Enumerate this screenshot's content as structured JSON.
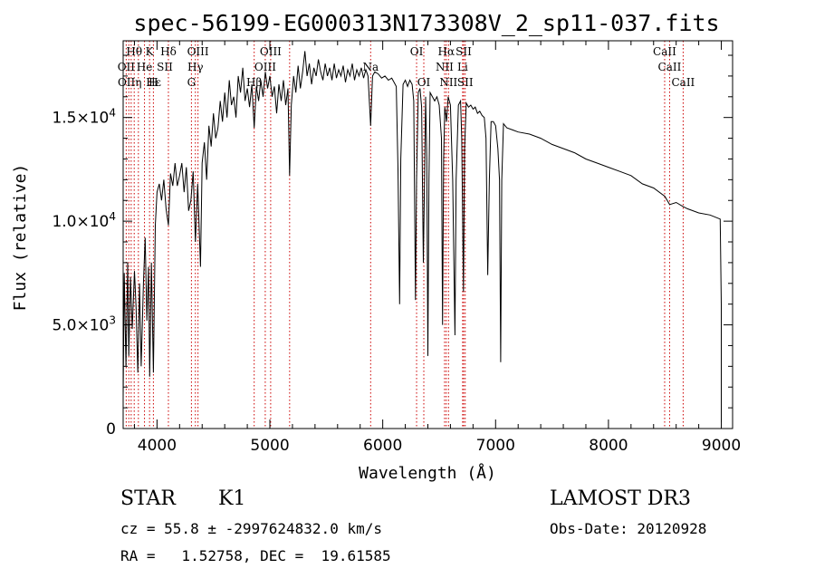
{
  "chart_data": {
    "type": "line",
    "title": "spec-56199-EG000313N173308V_2_sp11-037.fits",
    "xlabel": "Wavelength (Å)",
    "ylabel": "Flux (relative)",
    "xlim": [
      3700,
      9100
    ],
    "ylim": [
      0,
      18700
    ],
    "xticks": [
      {
        "v": 4000,
        "label": "4000"
      },
      {
        "v": 5000,
        "label": "5000"
      },
      {
        "v": 6000,
        "label": "6000"
      },
      {
        "v": 7000,
        "label": "7000"
      },
      {
        "v": 8000,
        "label": "8000"
      },
      {
        "v": 9000,
        "label": "9000"
      }
    ],
    "yticks": [
      {
        "v": 0,
        "mant": "0",
        "exp": ""
      },
      {
        "v": 5000,
        "mant": "5.0×10",
        "exp": "3"
      },
      {
        "v": 10000,
        "mant": "1.0×10",
        "exp": "4"
      },
      {
        "v": 15000,
        "mant": "1.5×10",
        "exp": "4"
      }
    ],
    "spectrum": [
      [
        3700,
        1500
      ],
      [
        3710,
        7500
      ],
      [
        3725,
        3000
      ],
      [
        3740,
        8000
      ],
      [
        3750,
        3500
      ],
      [
        3765,
        7300
      ],
      [
        3780,
        4800
      ],
      [
        3800,
        7600
      ],
      [
        3815,
        5800
      ],
      [
        3830,
        2700
      ],
      [
        3845,
        7000
      ],
      [
        3860,
        3000
      ],
      [
        3880,
        7000
      ],
      [
        3895,
        9200
      ],
      [
        3910,
        5200
      ],
      [
        3925,
        7800
      ],
      [
        3935,
        2500
      ],
      [
        3950,
        8000
      ],
      [
        3968,
        2700
      ],
      [
        3985,
        9800
      ],
      [
        4000,
        11400
      ],
      [
        4020,
        11800
      ],
      [
        4040,
        11000
      ],
      [
        4060,
        12000
      ],
      [
        4080,
        10600
      ],
      [
        4101,
        9800
      ],
      [
        4120,
        12300
      ],
      [
        4140,
        11700
      ],
      [
        4160,
        12800
      ],
      [
        4180,
        11700
      ],
      [
        4200,
        12200
      ],
      [
        4220,
        12800
      ],
      [
        4240,
        11400
      ],
      [
        4260,
        12600
      ],
      [
        4280,
        10500
      ],
      [
        4300,
        11000
      ],
      [
        4320,
        12400
      ],
      [
        4340,
        9000
      ],
      [
        4360,
        11800
      ],
      [
        4385,
        7800
      ],
      [
        4400,
        12800
      ],
      [
        4420,
        13800
      ],
      [
        4440,
        12000
      ],
      [
        4460,
        14600
      ],
      [
        4480,
        13600
      ],
      [
        4500,
        15200
      ],
      [
        4520,
        14000
      ],
      [
        4540,
        14500
      ],
      [
        4560,
        15800
      ],
      [
        4580,
        14800
      ],
      [
        4600,
        16200
      ],
      [
        4620,
        15000
      ],
      [
        4640,
        16800
      ],
      [
        4660,
        15600
      ],
      [
        4680,
        16000
      ],
      [
        4700,
        15000
      ],
      [
        4720,
        17000
      ],
      [
        4740,
        16200
      ],
      [
        4760,
        17400
      ],
      [
        4780,
        15800
      ],
      [
        4800,
        16400
      ],
      [
        4820,
        15500
      ],
      [
        4840,
        16600
      ],
      [
        4861,
        14500
      ],
      [
        4880,
        16500
      ],
      [
        4900,
        15800
      ],
      [
        4920,
        16800
      ],
      [
        4940,
        16000
      ],
      [
        4960,
        17200
      ],
      [
        4980,
        16400
      ],
      [
        5000,
        17000
      ],
      [
        5020,
        16000
      ],
      [
        5040,
        16500
      ],
      [
        5060,
        15200
      ],
      [
        5080,
        16600
      ],
      [
        5100,
        15800
      ],
      [
        5120,
        16800
      ],
      [
        5140,
        15600
      ],
      [
        5160,
        16400
      ],
      [
        5175,
        12200
      ],
      [
        5190,
        15600
      ],
      [
        5210,
        17000
      ],
      [
        5230,
        16200
      ],
      [
        5250,
        17500
      ],
      [
        5270,
        16400
      ],
      [
        5290,
        17200
      ],
      [
        5310,
        18200
      ],
      [
        5330,
        17000
      ],
      [
        5350,
        17600
      ],
      [
        5370,
        16600
      ],
      [
        5390,
        17400
      ],
      [
        5410,
        17000
      ],
      [
        5430,
        17800
      ],
      [
        5450,
        17200
      ],
      [
        5470,
        16800
      ],
      [
        5490,
        17600
      ],
      [
        5510,
        17000
      ],
      [
        5530,
        17400
      ],
      [
        5550,
        16800
      ],
      [
        5570,
        17600
      ],
      [
        5590,
        16900
      ],
      [
        5610,
        17300
      ],
      [
        5630,
        17000
      ],
      [
        5650,
        17500
      ],
      [
        5670,
        16700
      ],
      [
        5690,
        17300
      ],
      [
        5710,
        17000
      ],
      [
        5730,
        17600
      ],
      [
        5750,
        16800
      ],
      [
        5770,
        17300
      ],
      [
        5790,
        17000
      ],
      [
        5810,
        17400
      ],
      [
        5830,
        16900
      ],
      [
        5850,
        17300
      ],
      [
        5870,
        17000
      ],
      [
        5893,
        14600
      ],
      [
        5910,
        17000
      ],
      [
        5930,
        17200
      ],
      [
        5960,
        17100
      ],
      [
        5990,
        16900
      ],
      [
        6020,
        17000
      ],
      [
        6050,
        16800
      ],
      [
        6080,
        16900
      ],
      [
        6100,
        16700
      ],
      [
        6120,
        16500
      ],
      [
        6135,
        12500
      ],
      [
        6150,
        6000
      ],
      [
        6160,
        13000
      ],
      [
        6180,
        16600
      ],
      [
        6200,
        16800
      ],
      [
        6220,
        16500
      ],
      [
        6240,
        16800
      ],
      [
        6260,
        16600
      ],
      [
        6275,
        15800
      ],
      [
        6290,
        6200
      ],
      [
        6300,
        12000
      ],
      [
        6315,
        16200
      ],
      [
        6330,
        16400
      ],
      [
        6345,
        15500
      ],
      [
        6360,
        8000
      ],
      [
        6370,
        12000
      ],
      [
        6380,
        16000
      ],
      [
        6390,
        13000
      ],
      [
        6400,
        3500
      ],
      [
        6410,
        12000
      ],
      [
        6420,
        16200
      ],
      [
        6440,
        16000
      ],
      [
        6460,
        15800
      ],
      [
        6480,
        16000
      ],
      [
        6500,
        15600
      ],
      [
        6520,
        14000
      ],
      [
        6530,
        5000
      ],
      [
        6540,
        13000
      ],
      [
        6550,
        15500
      ],
      [
        6565,
        14800
      ],
      [
        6580,
        16000
      ],
      [
        6600,
        15600
      ],
      [
        6620,
        12000
      ],
      [
        6640,
        4500
      ],
      [
        6650,
        12000
      ],
      [
        6670,
        15600
      ],
      [
        6690,
        15800
      ],
      [
        6700,
        14000
      ],
      [
        6715,
        6600
      ],
      [
        6725,
        13500
      ],
      [
        6740,
        15700
      ],
      [
        6760,
        15500
      ],
      [
        6780,
        15600
      ],
      [
        6800,
        15400
      ],
      [
        6820,
        15500
      ],
      [
        6840,
        15200
      ],
      [
        6860,
        15300
      ],
      [
        6880,
        15100
      ],
      [
        6900,
        15000
      ],
      [
        6915,
        14000
      ],
      [
        6930,
        7400
      ],
      [
        6945,
        12000
      ],
      [
        6960,
        14800
      ],
      [
        6980,
        14800
      ],
      [
        7000,
        14600
      ],
      [
        7020,
        13500
      ],
      [
        7035,
        12000
      ],
      [
        7045,
        3200
      ],
      [
        7055,
        12000
      ],
      [
        7070,
        14700
      ],
      [
        7100,
        14500
      ],
      [
        7150,
        14400
      ],
      [
        7200,
        14300
      ],
      [
        7300,
        14200
      ],
      [
        7400,
        14000
      ],
      [
        7500,
        13700
      ],
      [
        7600,
        13500
      ],
      [
        7700,
        13300
      ],
      [
        7800,
        13000
      ],
      [
        7900,
        12800
      ],
      [
        8000,
        12600
      ],
      [
        8100,
        12400
      ],
      [
        8200,
        12200
      ],
      [
        8300,
        11800
      ],
      [
        8400,
        11600
      ],
      [
        8500,
        11200
      ],
      [
        8542,
        10800
      ],
      [
        8600,
        10900
      ],
      [
        8662,
        10700
      ],
      [
        8700,
        10600
      ],
      [
        8800,
        10400
      ],
      [
        8900,
        10300
      ],
      [
        8990,
        10100
      ],
      [
        9000,
        6000
      ],
      [
        9000,
        300
      ]
    ],
    "spectral_lines": [
      {
        "name": "Hθ",
        "wl": 3798,
        "row": 0
      },
      {
        "name": "K",
        "wl": 3934,
        "row": 0
      },
      {
        "name": "Hδ",
        "wl": 4101,
        "row": 0
      },
      {
        "name": "OIII",
        "wl": 4363,
        "row": 0
      },
      {
        "name": "OIII",
        "wl": 5007,
        "row": 0
      },
      {
        "name": "OI",
        "wl": 6300,
        "row": 0
      },
      {
        "name": "Hα",
        "wl": 6563,
        "row": 0
      },
      {
        "name": "SII",
        "wl": 6717,
        "row": 0
      },
      {
        "name": "CaII",
        "wl": 8498,
        "row": 0
      },
      {
        "name": "OII",
        "wl": 3727,
        "row": 1
      },
      {
        "name": "He",
        "wl": 3889,
        "row": 1
      },
      {
        "name": "SII",
        "wl": 4069,
        "row": 1
      },
      {
        "name": "Hγ",
        "wl": 4340,
        "row": 1
      },
      {
        "name": "OIII",
        "wl": 4959,
        "row": 1
      },
      {
        "name": "Na",
        "wl": 5893,
        "row": 1
      },
      {
        "name": "NII",
        "wl": 6548,
        "row": 1
      },
      {
        "name": "Li",
        "wl": 6708,
        "row": 1
      },
      {
        "name": "CaII",
        "wl": 8542,
        "row": 1
      },
      {
        "name": "OII",
        "wl": 3729,
        "row": 2
      },
      {
        "name": "Hε",
        "wl": 3970,
        "row": 2
      },
      {
        "name": "η",
        "wl": 3835,
        "row": 2
      },
      {
        "name": "H",
        "wl": 3968,
        "row": 2
      },
      {
        "name": "G",
        "wl": 4305,
        "row": 2
      },
      {
        "name": "Hβ",
        "wl": 4861,
        "row": 2
      },
      {
        "name": "OI",
        "wl": 6364,
        "row": 2
      },
      {
        "name": "NII",
        "wl": 6583,
        "row": 2
      },
      {
        "name": "SII",
        "wl": 6731,
        "row": 2
      },
      {
        "name": "CaII",
        "wl": 8662,
        "row": 2
      }
    ],
    "marker_lines": [
      3727,
      3750,
      3771,
      3798,
      3835,
      3889,
      3934,
      3968,
      4101,
      4305,
      4340,
      4363,
      4861,
      4959,
      5007,
      5175,
      5893,
      6300,
      6364,
      6548,
      6563,
      6583,
      6708,
      6717,
      6731,
      8498,
      8542,
      8662
    ]
  },
  "info": {
    "object_class": "STAR",
    "subclass": "K1",
    "survey": "LAMOST DR3",
    "redshift_text": "cz = 55.8 ± -2997624832.0 km/s",
    "obs_date": "Obs-Date: 20120928",
    "coords": "RA =   1.52758, DEC =  19.61585"
  },
  "colors": {
    "spectrum": "#000000",
    "marker": "#cc0000",
    "background": "#ffffff"
  }
}
